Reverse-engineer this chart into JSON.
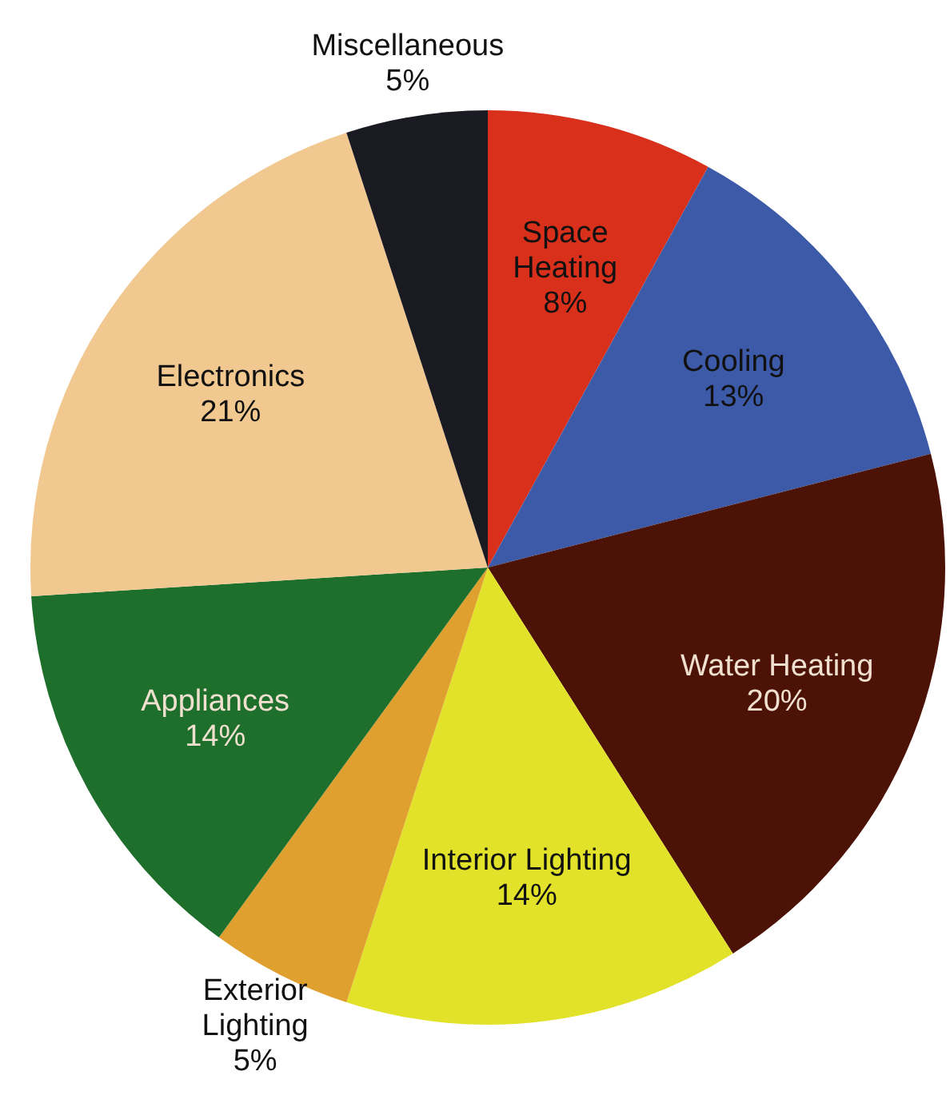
{
  "chart_data": {
    "type": "pie",
    "categories": [
      "Space Heating",
      "Cooling",
      "Water Heating",
      "Interior Lighting",
      "Exterior Lighting",
      "Appliances",
      "Electronics",
      "Miscellaneous"
    ],
    "values": [
      8,
      13,
      20,
      14,
      5,
      14,
      21,
      5
    ],
    "value_labels": [
      "8%",
      "13%",
      "20%",
      "14%",
      "5%",
      "14%",
      "21%",
      "5%"
    ],
    "colors": [
      "#d9301c",
      "#3d5aa8",
      "#4d1206",
      "#e2e22a",
      "#e0a030",
      "#1e6e2c",
      "#f0c890",
      "#1a1a22"
    ]
  }
}
